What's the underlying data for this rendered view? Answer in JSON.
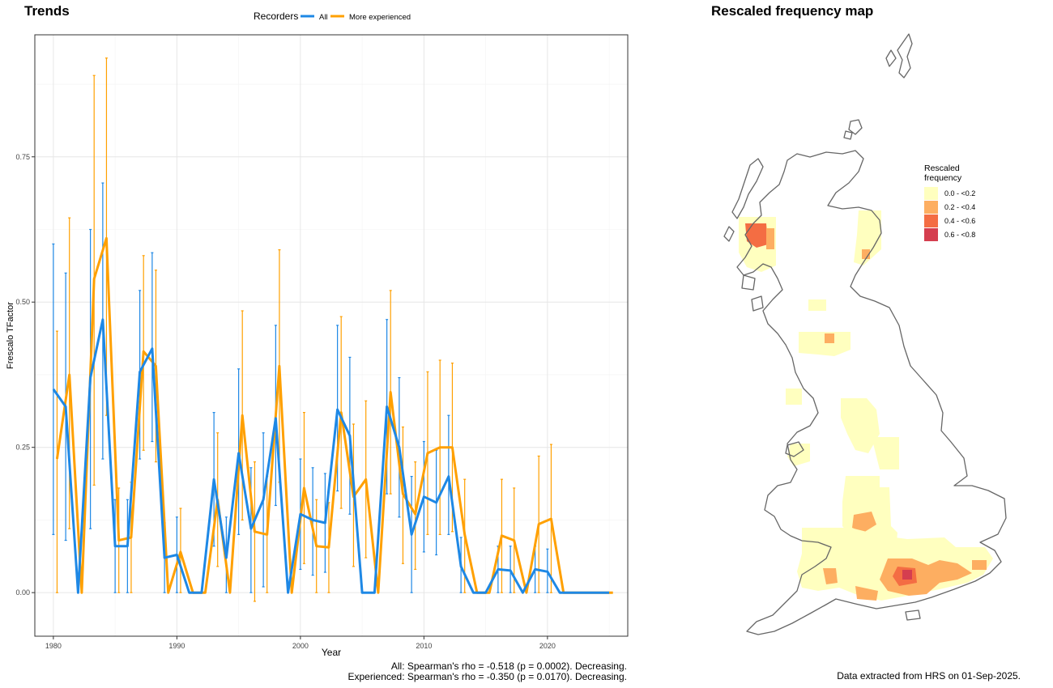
{
  "trends": {
    "title": "Trends",
    "legend_title": "Recorders",
    "stats_note": [
      "All: Spearman's rho = -0.518 (p = 0.0002). Decreasing.",
      "Experienced: Spearman's rho = -0.350 (p = 0.0170). Decreasing."
    ]
  },
  "map": {
    "title": "Rescaled frequency map",
    "legend": {
      "title_lines": [
        "Rescaled",
        "frequency"
      ],
      "items": [
        {
          "label": "0.0 - <0.2",
          "color": "#FFFFBF"
        },
        {
          "label": "0.2 - <0.4",
          "color": "#FDAE61"
        },
        {
          "label": "0.4 - <0.6",
          "color": "#F46D43"
        },
        {
          "label": "0.6 - <0.8",
          "color": "#D53E4F"
        }
      ]
    },
    "source_note": "Data extracted from HRS on 01-Sep-2025."
  },
  "colors": {
    "all": "#1E88E5",
    "experienced": "#FFA000",
    "outline": "#666666"
  },
  "chart_data": {
    "type": "line",
    "title": "",
    "xlabel": "Year",
    "ylabel": "Frescalo TFactor",
    "xlim": [
      1978.5,
      2026.5
    ],
    "ylim": [
      -0.075,
      0.96
    ],
    "x_ticks": [
      1980,
      1990,
      2000,
      2010,
      2020
    ],
    "y_ticks": [
      0.0,
      0.25,
      0.5,
      0.75
    ],
    "y_tick_labels": [
      "0.00",
      "0.25",
      "0.50",
      "0.75"
    ],
    "grid": true,
    "legend_position": "top",
    "series": [
      {
        "name": "All",
        "color": "#1E88E5",
        "x": [
          1980,
          1981,
          1982,
          1983,
          1984,
          1985,
          1986,
          1987,
          1988,
          1989,
          1990,
          1991,
          1992,
          1993,
          1994,
          1995,
          1996,
          1997,
          1998,
          1999,
          2000,
          2001,
          2002,
          2003,
          2004,
          2005,
          2006,
          2007,
          2008,
          2009,
          2010,
          2011,
          2012,
          2013,
          2014,
          2015,
          2016,
          2017,
          2018,
          2019,
          2020,
          2021,
          2022,
          2023,
          2024,
          2025
        ],
        "y": [
          0.35,
          0.32,
          0.0,
          0.37,
          0.47,
          0.08,
          0.08,
          0.38,
          0.42,
          0.06,
          0.065,
          0.0,
          0.0,
          0.195,
          0.06,
          0.24,
          0.11,
          0.16,
          0.3,
          0.0,
          0.135,
          0.125,
          0.12,
          0.315,
          0.27,
          0.0,
          0.0,
          0.32,
          0.25,
          0.1,
          0.165,
          0.155,
          0.2,
          0.045,
          0.0,
          0.0,
          0.04,
          0.038,
          0.0,
          0.04,
          0.036,
          0.0,
          0.0,
          0.0,
          0.0,
          0.0
        ],
        "lower": [
          0.1,
          0.09,
          null,
          0.11,
          0.23,
          0.0,
          0.0,
          0.23,
          0.26,
          0.0,
          0.0,
          null,
          null,
          0.08,
          0.0,
          0.1,
          0.0,
          0.01,
          0.15,
          null,
          0.04,
          0.03,
          0.035,
          0.175,
          0.135,
          null,
          null,
          0.17,
          0.13,
          0.0,
          0.07,
          0.065,
          0.1,
          0.0,
          null,
          null,
          0.0,
          0.0,
          null,
          0.0,
          0.0,
          null,
          null,
          null,
          null,
          null
        ],
        "upper": [
          0.6,
          0.55,
          null,
          0.625,
          0.705,
          0.16,
          0.16,
          0.52,
          0.585,
          0.12,
          0.13,
          null,
          null,
          0.31,
          0.13,
          0.385,
          0.215,
          0.275,
          0.46,
          null,
          0.23,
          0.215,
          0.205,
          0.46,
          0.405,
          null,
          null,
          0.47,
          0.37,
          0.2,
          0.26,
          0.245,
          0.305,
          0.095,
          null,
          null,
          0.08,
          0.08,
          null,
          0.08,
          0.075,
          null,
          null,
          null,
          null,
          null
        ]
      },
      {
        "name": "More experienced",
        "color": "#FFA000",
        "x": [
          1980,
          1981,
          1982,
          1983,
          1984,
          1985,
          1986,
          1987,
          1988,
          1989,
          1990,
          1991,
          1992,
          1993,
          1994,
          1995,
          1996,
          1997,
          1998,
          1999,
          2000,
          2001,
          2002,
          2003,
          2004,
          2005,
          2006,
          2007,
          2008,
          2009,
          2010,
          2011,
          2012,
          2013,
          2014,
          2015,
          2016,
          2017,
          2018,
          2019,
          2020,
          2021,
          2022,
          2023,
          2024,
          2025
        ],
        "y": [
          0.23,
          0.375,
          0.0,
          0.54,
          0.61,
          0.09,
          0.095,
          0.415,
          0.39,
          0.0,
          0.07,
          0.0,
          0.0,
          0.16,
          0.0,
          0.305,
          0.105,
          0.1,
          0.39,
          0.0,
          0.18,
          0.08,
          0.078,
          0.31,
          0.165,
          0.195,
          0.0,
          0.345,
          0.17,
          0.135,
          0.24,
          0.25,
          0.25,
          0.1,
          0.0,
          0.0,
          0.098,
          0.09,
          0.0,
          0.118,
          0.127,
          0.0,
          0.0,
          0.0,
          0.0,
          0.0
        ],
        "lower": [
          0.0,
          0.11,
          null,
          0.185,
          0.305,
          0.0,
          0.0,
          0.245,
          0.225,
          null,
          0.0,
          null,
          null,
          0.045,
          null,
          0.125,
          -0.015,
          0.0,
          0.19,
          null,
          0.05,
          0.0,
          0.0,
          0.145,
          0.045,
          0.06,
          null,
          0.17,
          0.05,
          0.04,
          0.1,
          0.1,
          0.105,
          0.0,
          null,
          null,
          0.0,
          0.0,
          null,
          0.0,
          0.0,
          null,
          null,
          null,
          null,
          null
        ],
        "upper": [
          0.45,
          0.645,
          null,
          0.89,
          0.92,
          0.18,
          0.19,
          0.58,
          0.555,
          null,
          0.145,
          null,
          null,
          0.275,
          null,
          0.485,
          0.225,
          0.2,
          0.59,
          null,
          0.31,
          0.16,
          0.155,
          0.475,
          0.29,
          0.33,
          null,
          0.52,
          0.285,
          0.225,
          0.38,
          0.4,
          0.395,
          0.195,
          null,
          null,
          0.195,
          0.18,
          null,
          0.235,
          0.255,
          null,
          null,
          null,
          null,
          null
        ]
      }
    ]
  }
}
